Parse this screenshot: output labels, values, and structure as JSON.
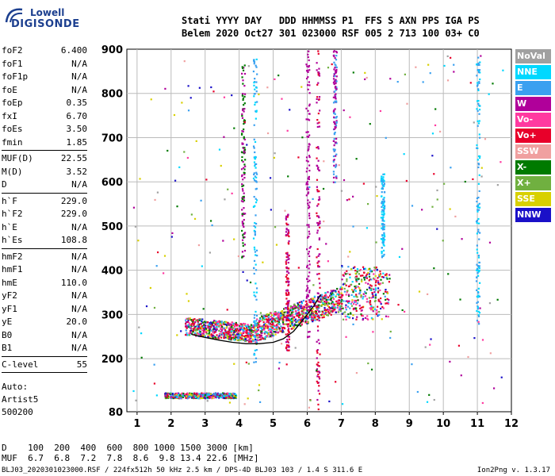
{
  "logo": {
    "top": "Lowell",
    "bottom": "DIGISONDE"
  },
  "header": {
    "line1": "Stati YYYY DAY   DDD HHMMSS P1  FFS S AXN PPS IGA PS",
    "line2": "Belem 2020 Oct27 301 023000 RSF 005 2 713 100 03+ C0"
  },
  "params": [
    {
      "k": "foF2",
      "v": "6.400"
    },
    {
      "k": "foF1",
      "v": "N/A"
    },
    {
      "k": "foF1p",
      "v": "N/A"
    },
    {
      "k": "foE",
      "v": "N/A"
    },
    {
      "k": "foEp",
      "v": "0.35"
    },
    {
      "k": "fxI",
      "v": "6.70"
    },
    {
      "k": "foEs",
      "v": "3.50"
    },
    {
      "k": "fmin",
      "v": "1.85"
    },
    {
      "sep": true
    },
    {
      "k": "MUF(D)",
      "v": "22.55"
    },
    {
      "k": "M(D)",
      "v": "3.52"
    },
    {
      "k": "D",
      "v": "N/A"
    },
    {
      "sep": true
    },
    {
      "k": "h`F",
      "v": "229.0"
    },
    {
      "k": "h`F2",
      "v": "229.0"
    },
    {
      "k": "h`E",
      "v": "N/A"
    },
    {
      "k": "h`Es",
      "v": "108.8"
    },
    {
      "sep": true
    },
    {
      "k": "hmF2",
      "v": "N/A"
    },
    {
      "k": "hmF1",
      "v": "N/A"
    },
    {
      "k": "hmE",
      "v": "110.0"
    },
    {
      "k": "yF2",
      "v": "N/A"
    },
    {
      "k": "yF1",
      "v": "N/A"
    },
    {
      "k": "yE",
      "v": "20.0"
    },
    {
      "k": "B0",
      "v": "N/A"
    },
    {
      "k": "B1",
      "v": "N/A"
    },
    {
      "sep": true
    },
    {
      "k": "C-level",
      "v": "55"
    },
    {
      "sep": true
    }
  ],
  "auto": {
    "line1": "Auto:",
    "line2": "Artist5",
    "line3": "500200"
  },
  "legend": [
    {
      "label": "NoVal",
      "color": "#a0a0a0"
    },
    {
      "label": "NNE",
      "color": "#00d8ff"
    },
    {
      "label": "E",
      "color": "#3aa0f0"
    },
    {
      "label": "W",
      "color": "#b0009a"
    },
    {
      "label": "Vo-",
      "color": "#ff3aa0"
    },
    {
      "label": "Vo+",
      "color": "#e8002a"
    },
    {
      "label": "SSW",
      "color": "#f0a0a0"
    },
    {
      "label": "X-",
      "color": "#007a00"
    },
    {
      "label": "X+",
      "color": "#70b040"
    },
    {
      "label": "SSE",
      "color": "#d8d000"
    },
    {
      "label": "NNW",
      "color": "#1a10c8"
    }
  ],
  "footer": {
    "line1": "D    100  200  400  600  800 1000 1500 3000 [km]",
    "line2": "MUF  6.7  6.8  7.2  7.8  8.6  9.8 13.4 22.6 [MHz]",
    "file": "BLJ03_2020301023000.RSF / 224fx512h 50 kHz 2.5 km / DPS-4D BLJ03 103 / 1.4 S 311.6 E",
    "version": "Ion2Png v. 1.3.17"
  },
  "chart_data": {
    "type": "scatter",
    "title": "",
    "xlabel": "",
    "ylabel": "",
    "xlim": [
      0.7,
      12
    ],
    "ylim": [
      80,
      900
    ],
    "x_ticks": [
      1,
      2,
      3,
      4,
      5,
      6,
      7,
      8,
      9,
      10,
      11,
      12
    ],
    "y_ticks": [
      200,
      300,
      400,
      500,
      600,
      700,
      800,
      900
    ],
    "y_tick_labels": [
      "200",
      "300",
      "400",
      "500",
      "600",
      "700",
      "800",
      "900"
    ],
    "y_bottom_label": "80",
    "trace_line": {
      "x": [
        2.6,
        3.0,
        3.4,
        3.8,
        4.2,
        4.6,
        5.0,
        5.3,
        5.6,
        5.9,
        6.2,
        6.4
      ],
      "y": [
        255,
        248,
        242,
        237,
        234,
        234,
        237,
        245,
        262,
        290,
        320,
        345
      ]
    }
  }
}
